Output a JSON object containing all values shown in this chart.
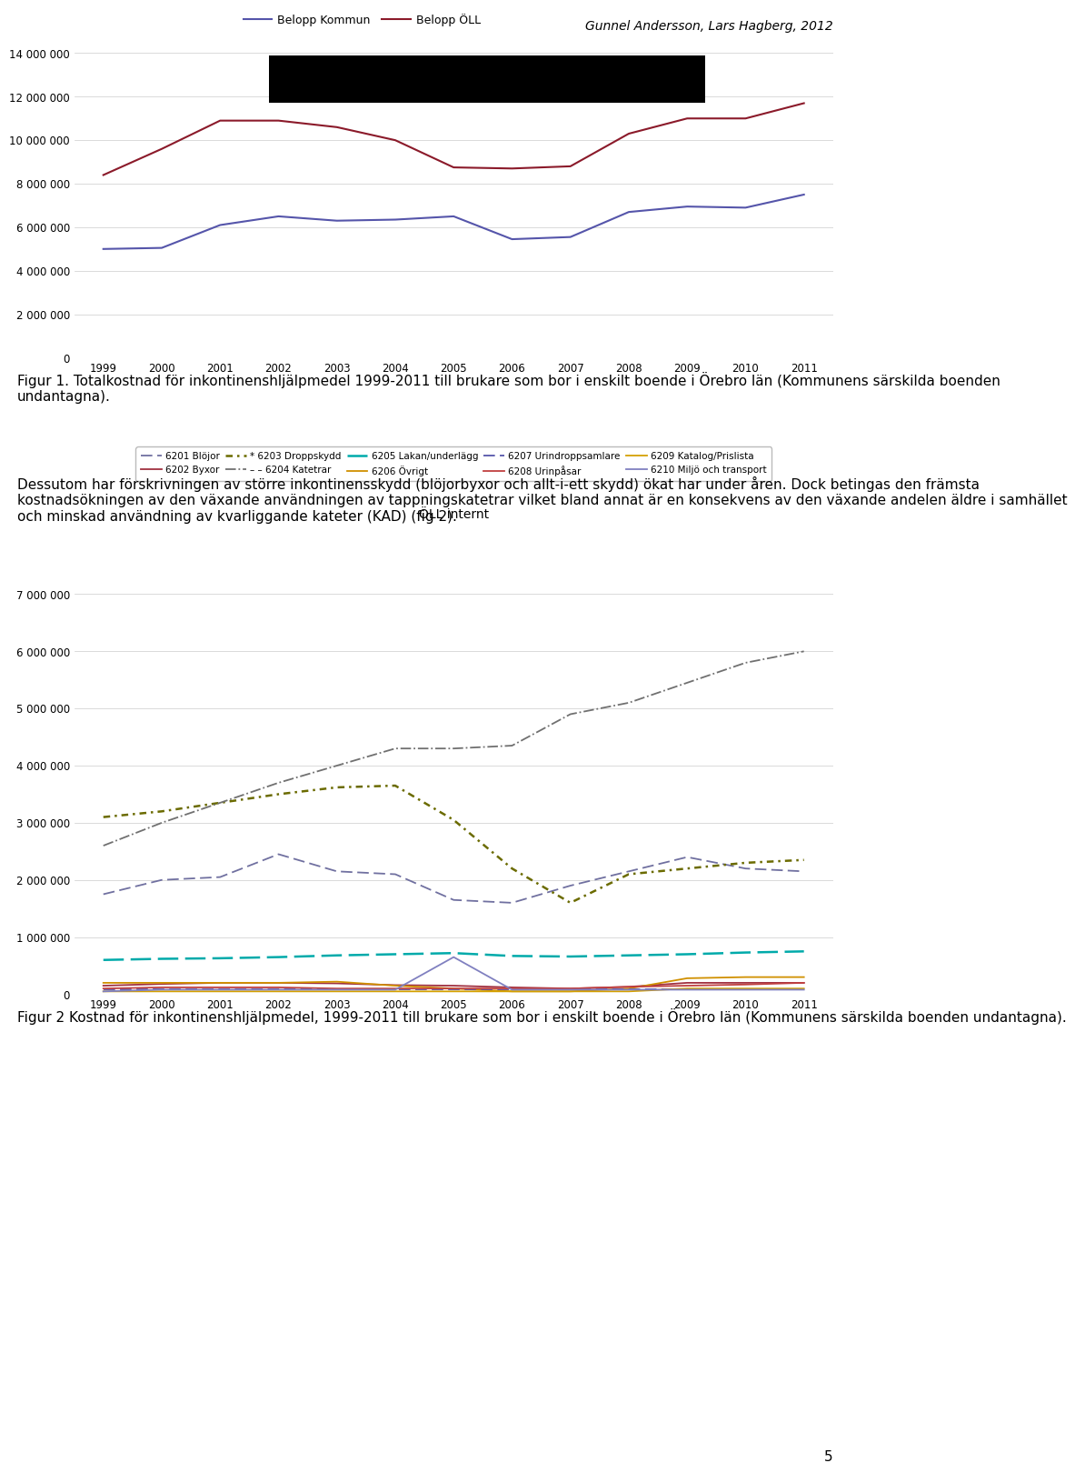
{
  "header_text": "Gunnel Andersson, Lars Hagberg, 2012",
  "years": [
    1999,
    2000,
    2001,
    2002,
    2003,
    2004,
    2005,
    2006,
    2007,
    2008,
    2009,
    2010,
    2011
  ],
  "chart1": {
    "belopp_kommun": [
      5000000,
      5050000,
      6100000,
      6500000,
      6300000,
      6350000,
      6500000,
      5450000,
      5550000,
      6700000,
      6950000,
      6900000,
      7500000
    ],
    "belopp_oll": [
      8400000,
      9600000,
      10900000,
      10900000,
      10600000,
      10000000,
      8750000,
      8700000,
      8800000,
      10300000,
      11000000,
      11000000,
      11700000
    ],
    "ylim": [
      0,
      14000000
    ],
    "yticks": [
      0,
      2000000,
      4000000,
      6000000,
      8000000,
      10000000,
      12000000,
      14000000
    ],
    "ytick_labels": [
      "0",
      "2 000 000",
      "4 000 000",
      "6 000 000",
      "8 000 000",
      "10 000 000",
      "12 000 000",
      "14 000 000"
    ],
    "color_kommun": "#5555AA",
    "color_oll": "#8B1A2A",
    "legend_label_kommun": "Belopp Kommun",
    "legend_label_oll": "Belopp ÖLL"
  },
  "fig1_caption": "Figur 1. Totalkostnad för inkontinenshljälpmedel 1999-2011 till brukare som bor i enskilt boende i Örebro län (Kommunens särskilda boenden undantagna).",
  "body_text": "Dessutom har förskrivningen av större inkontinensskydd (blöjorbyxor och allt-i-ett skydd) ökat har under åren. Dock betingas den främsta kostnadsökningen av den växande användningen av tappningskatetrar vilket bland annat är en konsekvens av den växande andelen äldre i samhället och minskad användning av kvarliggande kateter (KAD) (fig 2).",
  "chart2": {
    "title": "ÖLL internt",
    "ylim": [
      0,
      7000000
    ],
    "yticks": [
      0,
      1000000,
      2000000,
      3000000,
      4000000,
      5000000,
      6000000,
      7000000
    ],
    "ytick_labels": [
      "0",
      "1 000 000",
      "2 000 000",
      "3 000 000",
      "4 000 000",
      "5 000 000",
      "6 000 000",
      "7 000 000"
    ],
    "blojor": [
      1750000,
      2000000,
      2050000,
      2450000,
      2150000,
      2100000,
      1650000,
      1600000,
      1900000,
      2150000,
      2400000,
      2200000,
      2150000
    ],
    "byxor": [
      150000,
      180000,
      200000,
      200000,
      190000,
      160000,
      150000,
      120000,
      100000,
      130000,
      200000,
      200000,
      200000
    ],
    "droppskydd": [
      3100000,
      3200000,
      3350000,
      3500000,
      3620000,
      3650000,
      3050000,
      2200000,
      1600000,
      2100000,
      2200000,
      2300000,
      2350000
    ],
    "katetrar": [
      2600000,
      3000000,
      3350000,
      3700000,
      4000000,
      4300000,
      4300000,
      4350000,
      4900000,
      5100000,
      5450000,
      5800000,
      6000000
    ],
    "lakan": [
      600000,
      620000,
      630000,
      650000,
      680000,
      700000,
      720000,
      670000,
      660000,
      680000,
      700000,
      730000,
      750000
    ],
    "ovrigt": [
      200000,
      200000,
      200000,
      200000,
      220000,
      150000,
      100000,
      50000,
      50000,
      100000,
      280000,
      300000,
      300000
    ],
    "urindroppsamlare": [
      80000,
      80000,
      80000,
      80000,
      80000,
      80000,
      80000,
      80000,
      80000,
      80000,
      80000,
      80000,
      80000
    ],
    "urinpasar": [
      100000,
      120000,
      120000,
      120000,
      100000,
      100000,
      100000,
      100000,
      100000,
      130000,
      150000,
      170000,
      200000
    ],
    "katalog": [
      50000,
      50000,
      50000,
      50000,
      50000,
      50000,
      50000,
      50000,
      50000,
      50000,
      100000,
      100000,
      100000
    ],
    "miljo": [
      50000,
      80000,
      80000,
      80000,
      80000,
      80000,
      650000,
      80000,
      80000,
      80000,
      80000,
      80000,
      80000
    ],
    "color_blojor": "#7070A0",
    "color_byxor": "#A03040",
    "color_droppskydd": "#6B6B00",
    "color_katetrar": "#707070",
    "color_lakan": "#00AAAA",
    "color_ovrigt": "#D09000",
    "color_urindroppsamlare": "#5555AA",
    "color_urinpasar": "#C04040",
    "color_katalog": "#D4A000",
    "color_miljo": "#8080C0"
  },
  "fig2_caption": "Figur 2 Kostnad för inkontinenshljälpmedel, 1999-2011 till brukare som bor i enskilt boende i Örebro län (Kommunens särskilda boenden undantagna).",
  "page_number": "5"
}
